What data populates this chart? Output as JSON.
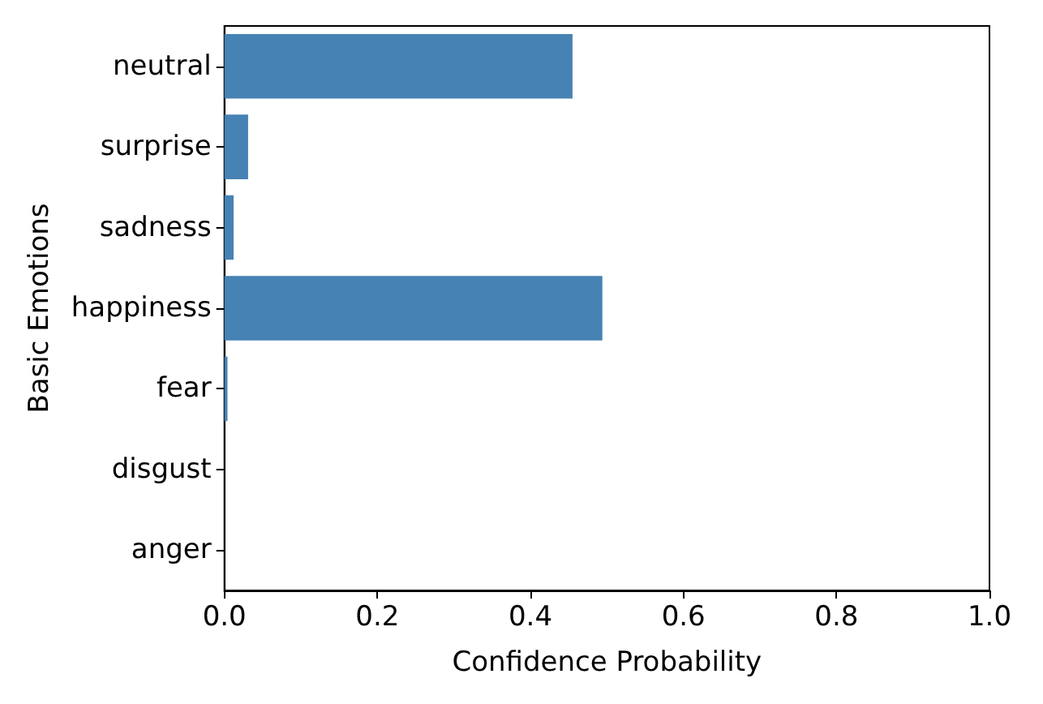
{
  "chart_data": {
    "type": "bar",
    "orientation": "horizontal",
    "xlabel": "Confidence Probability",
    "ylabel": "Basic Emotions",
    "categories": [
      "neutral",
      "surprise",
      "sadness",
      "happiness",
      "fear",
      "disgust",
      "anger"
    ],
    "values": [
      0.455,
      0.031,
      0.012,
      0.494,
      0.004,
      0,
      0
    ],
    "color": "#4682b4",
    "xlim": [
      0,
      1
    ],
    "xticks": [
      {
        "value": 0,
        "label": "0.0"
      },
      {
        "value": 0.2,
        "label": "0.2"
      },
      {
        "value": 0.4,
        "label": "0.4"
      },
      {
        "value": 0.6,
        "label": "0.6"
      },
      {
        "value": 0.8,
        "label": "0.8"
      },
      {
        "value": 1,
        "label": "1.0"
      }
    ],
    "grid": false
  }
}
